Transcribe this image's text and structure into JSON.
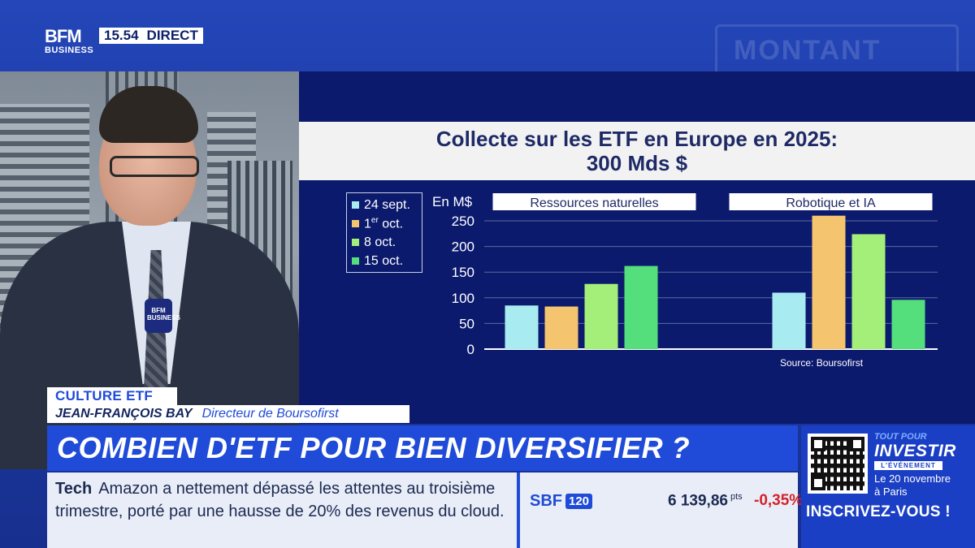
{
  "broadcast": {
    "logo_main": "BFM",
    "logo_sub": "BUSINESS",
    "time": "15.54",
    "status": "DIRECT",
    "background_text": "MONTANT"
  },
  "mic_label": "BFM BUSINESS",
  "chart_data": {
    "type": "bar",
    "title": "Collecte sur les ETF en Europe en 2025:",
    "subtitle": "300 Mds $",
    "ylabel": "En M$",
    "ylim": [
      0,
      250
    ],
    "yticks": [
      0,
      50,
      100,
      150,
      200,
      250
    ],
    "groups": [
      "Ressources naturelles",
      "Robotique et IA"
    ],
    "series": [
      {
        "name": "24 sept.",
        "color": "#a8ecf2",
        "values": [
          85,
          110
        ]
      },
      {
        "name": "1er oct.",
        "color": "#f5c46e",
        "values": [
          83,
          260
        ]
      },
      {
        "name": "8 oct.",
        "color": "#a4ef7a",
        "values": [
          127,
          224
        ]
      },
      {
        "name": "15 oct.",
        "color": "#55df7c",
        "values": [
          162,
          96
        ]
      }
    ],
    "legend": {
      "position": "left",
      "items": [
        {
          "base": "24 sept.",
          "sup": ""
        },
        {
          "base": "1",
          "sup": "er",
          "rest": " oct."
        },
        {
          "base": "8 oct.",
          "sup": ""
        },
        {
          "base": "15 oct.",
          "sup": ""
        }
      ]
    },
    "source": "Source: Boursofirst",
    "grid": true
  },
  "lower_third": {
    "tag": "CULTURE ETF",
    "guest_name": "JEAN-FRANÇOIS BAY",
    "guest_role": "Directeur de Boursofirst",
    "headline": "COMBIEN D'ETF POUR BIEN DIVERSIFIER ?"
  },
  "ticker": {
    "category": "Tech",
    "text": "Amazon a nettement dépassé les attentes au troisième trimestre, porté par une hausse de 20% des revenus du cloud.",
    "index_name": "SBF",
    "index_badge": "120",
    "index_value": "6 139,86",
    "index_unit": "pts",
    "index_change": "-0,35%"
  },
  "promo": {
    "kicker": "TOUT POUR",
    "brand": "INVESTIR",
    "event": "L'ÉVÉNEMENT",
    "date_line1": "Le 20 novembre",
    "date_line2": "à Paris",
    "cta": "INSCRIVEZ-VOUS !"
  }
}
